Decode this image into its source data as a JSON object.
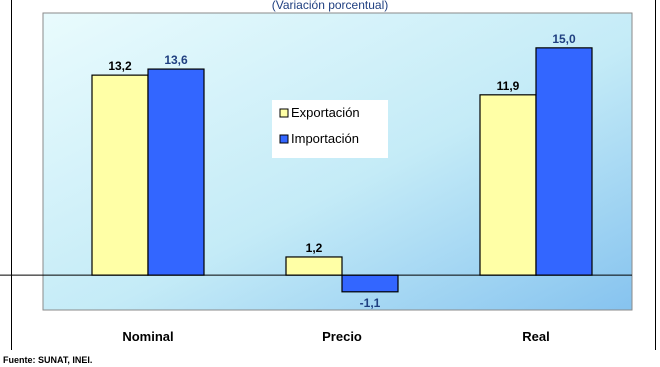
{
  "chart_data": {
    "type": "bar",
    "title": "(Variación porcentual)",
    "categories": [
      "Nominal",
      "Precio",
      "Real"
    ],
    "series": [
      {
        "name": "Exportación",
        "values": [
          13.2,
          1.2,
          11.9
        ],
        "labels": [
          "13,2",
          "1,2",
          "11,9"
        ],
        "color": "#ffffa6"
      },
      {
        "name": "Importación",
        "values": [
          13.6,
          -1.1,
          15.0
        ],
        "labels": [
          "13,6",
          "-1,1",
          "15,0"
        ],
        "color": "#3366ff"
      }
    ],
    "ylim": [
      -2.3,
      17.3
    ],
    "legend": "center",
    "grid": false,
    "label_color": "#1f3f80"
  },
  "source": "Fuente: SUNAT, INEI."
}
